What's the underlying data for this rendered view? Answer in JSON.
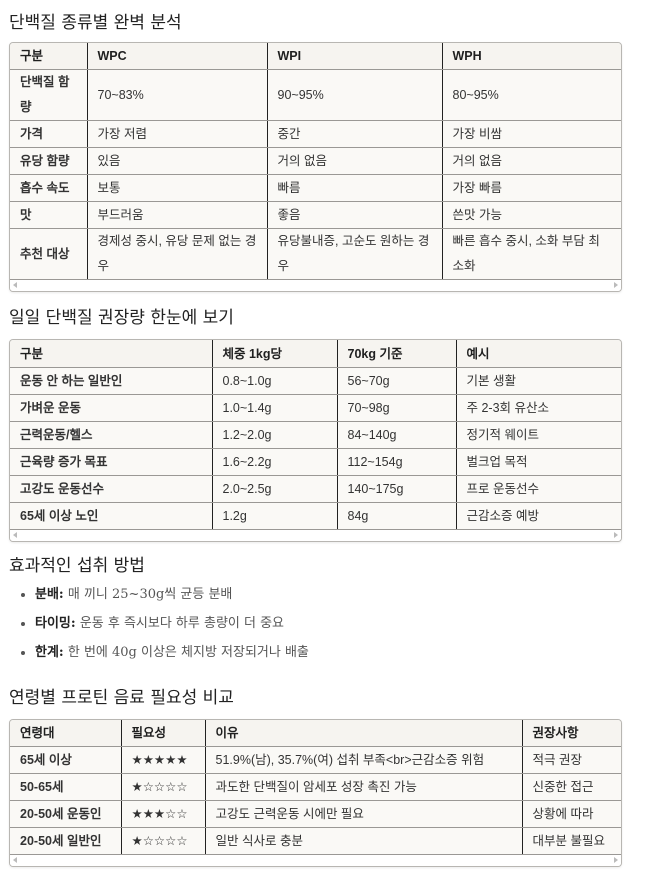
{
  "section1": {
    "title": "단백질 종류별 완벽 분석",
    "headers": [
      "구분",
      "WPC",
      "WPI",
      "WPH"
    ],
    "rows": [
      [
        "단백질 함량",
        "70~83%",
        "90~95%",
        "80~95%"
      ],
      [
        "가격",
        "가장 저렴",
        "중간",
        "가장 비쌈"
      ],
      [
        "유당 함량",
        "있음",
        "거의 없음",
        "거의 없음"
      ],
      [
        "흡수 속도",
        "보통",
        "빠름",
        "가장 빠름"
      ],
      [
        "맛",
        "부드러움",
        "좋음",
        "쓴맛 가능"
      ],
      [
        "추천 대상",
        "경제성 중시, 유당 문제 없는 경우",
        "유당불내증, 고순도 원하는 경우",
        "빠른 흡수 중시, 소화 부담 최소화"
      ]
    ]
  },
  "section2": {
    "title": "일일 단백질 권장량 한눈에 보기",
    "headers": [
      "구분",
      "체중 1kg당",
      "70kg 기준",
      "예시"
    ],
    "rows": [
      [
        "운동 안 하는 일반인",
        "0.8~1.0g",
        "56~70g",
        "기본 생활"
      ],
      [
        "가벼운 운동",
        "1.0~1.4g",
        "70~98g",
        "주 2-3회 유산소"
      ],
      [
        "근력운동/헬스",
        "1.2~2.0g",
        "84~140g",
        "정기적 웨이트"
      ],
      [
        "근육량 증가 목표",
        "1.6~2.2g",
        "112~154g",
        "벌크업 목적"
      ],
      [
        "고강도 운동선수",
        "2.0~2.5g",
        "140~175g",
        "프로 운동선수"
      ],
      [
        "65세 이상 노인",
        "1.2g",
        "84g",
        "근감소증 예방"
      ]
    ]
  },
  "section3": {
    "title": "효과적인 섭취 방법",
    "items": [
      {
        "label": "분배:",
        "text": " 매 끼니 25~30g씩 균등 분배"
      },
      {
        "label": "타이밍:",
        "text": " 운동 후 즉시보다 하루 총량이 더 중요"
      },
      {
        "label": "한계:",
        "text": " 한 번에 40g 이상은 체지방 저장되거나 배출"
      }
    ]
  },
  "section4": {
    "title": "연령별 프로틴 음료 필요성 비교",
    "headers": [
      "연령대",
      "필요성",
      "이유",
      "권장사항"
    ],
    "rows": [
      [
        "65세 이상",
        "★★★★★",
        "51.9%(남), 35.7%(여) 섭취 부족<br>근감소증 위험",
        "적극 권장"
      ],
      [
        "50-65세",
        "★☆☆☆☆",
        "과도한 단백질이 암세포 성장 촉진 가능",
        "신중한 접근"
      ],
      [
        "20-50세 운동인",
        "★★★☆☆",
        "고강도 근력운동 시에만 필요",
        "상황에 따라"
      ],
      [
        "20-50세 일반인",
        "★☆☆☆☆",
        "일반 식사로 충분",
        "대부분 불필요"
      ]
    ]
  }
}
